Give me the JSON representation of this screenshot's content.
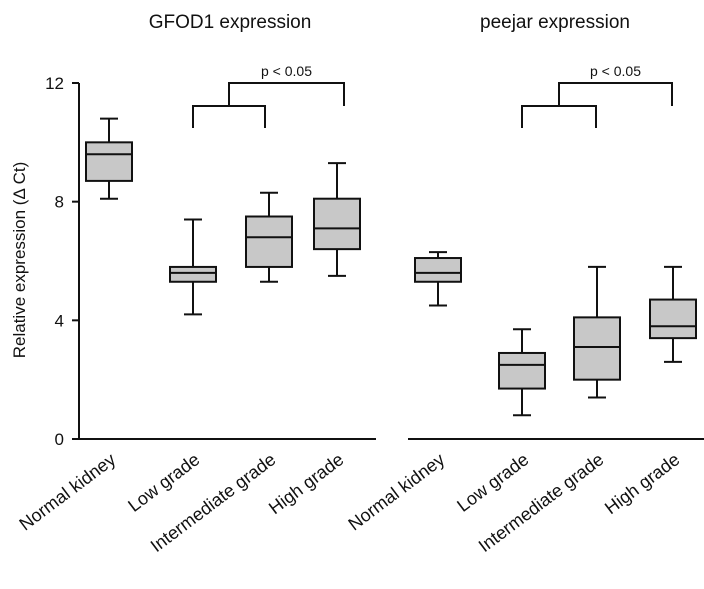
{
  "chart_data": {
    "type": "box",
    "ylabel": "Relative expression (Δ Ct)",
    "ylim": [
      0,
      12
    ],
    "yticks": [
      "0",
      "4",
      "8",
      "12"
    ],
    "categories": [
      "Normal kidney",
      "Low grade",
      "Intermediate grade",
      "High grade"
    ],
    "panels": [
      {
        "title": "GFOD1 expression",
        "significance": "p < 0.05",
        "boxes": [
          {
            "category": "Normal kidney",
            "whisker_low": 8.1,
            "q1": 8.7,
            "median": 9.6,
            "q3": 10.0,
            "whisker_high": 10.8
          },
          {
            "category": "Low grade",
            "whisker_low": 4.2,
            "q1": 5.3,
            "median": 5.6,
            "q3": 5.8,
            "whisker_high": 7.4
          },
          {
            "category": "Intermediate grade",
            "whisker_low": 5.3,
            "q1": 5.8,
            "median": 6.8,
            "q3": 7.5,
            "whisker_high": 8.3
          },
          {
            "category": "High grade",
            "whisker_low": 5.5,
            "q1": 6.4,
            "median": 7.1,
            "q3": 8.1,
            "whisker_high": 9.3
          }
        ]
      },
      {
        "title": "peejar expression",
        "significance": "p < 0.05",
        "boxes": [
          {
            "category": "Normal kidney",
            "whisker_low": 4.5,
            "q1": 5.3,
            "median": 5.6,
            "q3": 6.1,
            "whisker_high": 6.3
          },
          {
            "category": "Low grade",
            "whisker_low": 0.8,
            "q1": 1.7,
            "median": 2.5,
            "q3": 2.9,
            "whisker_high": 3.7
          },
          {
            "category": "Intermediate grade",
            "whisker_low": 1.4,
            "q1": 2.0,
            "median": 3.1,
            "q3": 4.1,
            "whisker_high": 5.8
          },
          {
            "category": "High grade",
            "whisker_low": 2.6,
            "q1": 3.4,
            "median": 3.8,
            "q3": 4.7,
            "whisker_high": 5.8
          }
        ]
      }
    ],
    "box_color": "#c8c8c8",
    "line_color": "#111111"
  }
}
